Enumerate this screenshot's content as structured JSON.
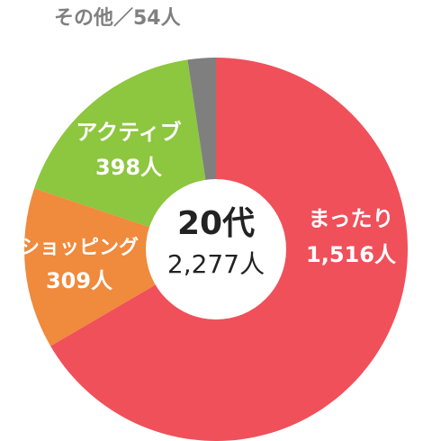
{
  "chart_data": {
    "type": "pie",
    "center_label": {
      "title": "20代",
      "total": "2,277人"
    },
    "slices": [
      {
        "name": "まったり",
        "value": 1516,
        "value_label": "1,516人",
        "color": "#f0505a"
      },
      {
        "name": "ショッピング",
        "value": 309,
        "value_label": "309人",
        "color": "#f08a3c"
      },
      {
        "name": "アクティブ",
        "value": 398,
        "value_label": "398人",
        "color": "#8dc63f"
      },
      {
        "name": "その他",
        "value": 54,
        "value_label": "54人",
        "color": "#7f7f7f"
      }
    ],
    "other_label": "その他／54人",
    "other_label_color": "#808080"
  }
}
